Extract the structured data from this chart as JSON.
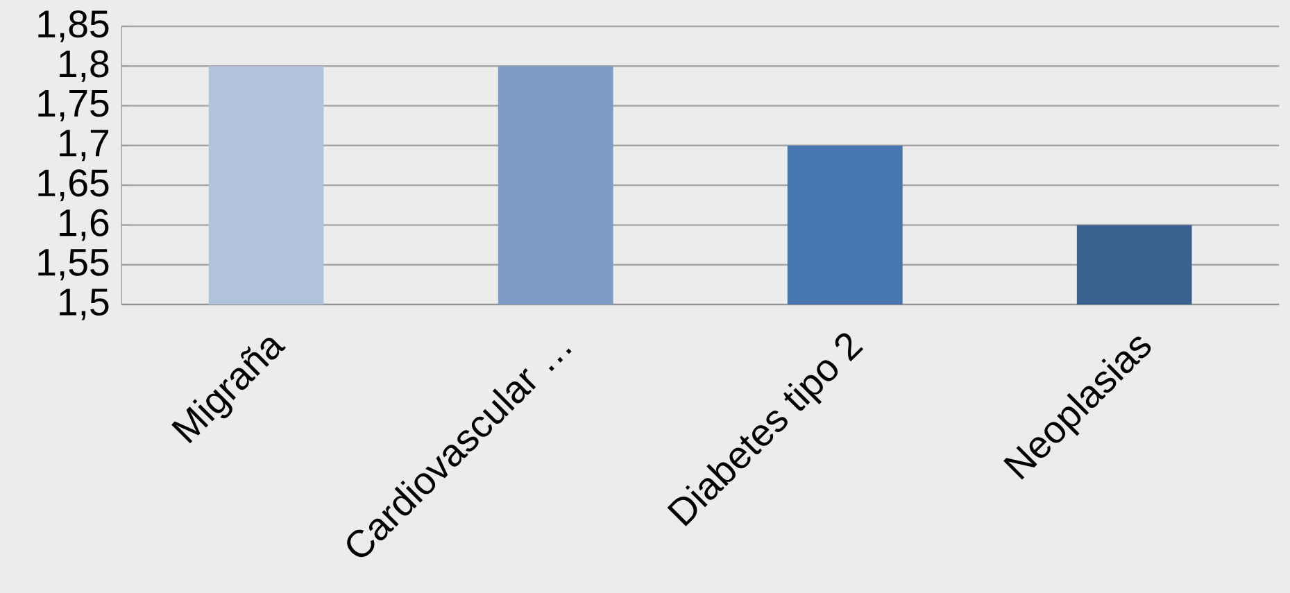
{
  "chart_data": {
    "type": "bar",
    "categories": [
      "Migraña",
      "Cardiovascular …",
      "Diabetes tipo 2",
      "Neoplasias"
    ],
    "values": [
      1.8,
      1.8,
      1.7,
      1.6
    ],
    "colors": [
      "#b1c2dc",
      "#7e9bc8",
      "#4876ae",
      "#3b6190"
    ],
    "ylim": [
      1.5,
      1.85
    ],
    "yticks": [
      {
        "value": 1.5,
        "label": "1,5"
      },
      {
        "value": 1.55,
        "label": "1,55"
      },
      {
        "value": 1.6,
        "label": "1,6"
      },
      {
        "value": 1.65,
        "label": "1,65"
      },
      {
        "value": 1.7,
        "label": "1,7"
      },
      {
        "value": 1.75,
        "label": "1,75"
      },
      {
        "value": 1.8,
        "label": "1,8"
      },
      {
        "value": 1.85,
        "label": "1,85"
      }
    ],
    "grid": "y"
  }
}
